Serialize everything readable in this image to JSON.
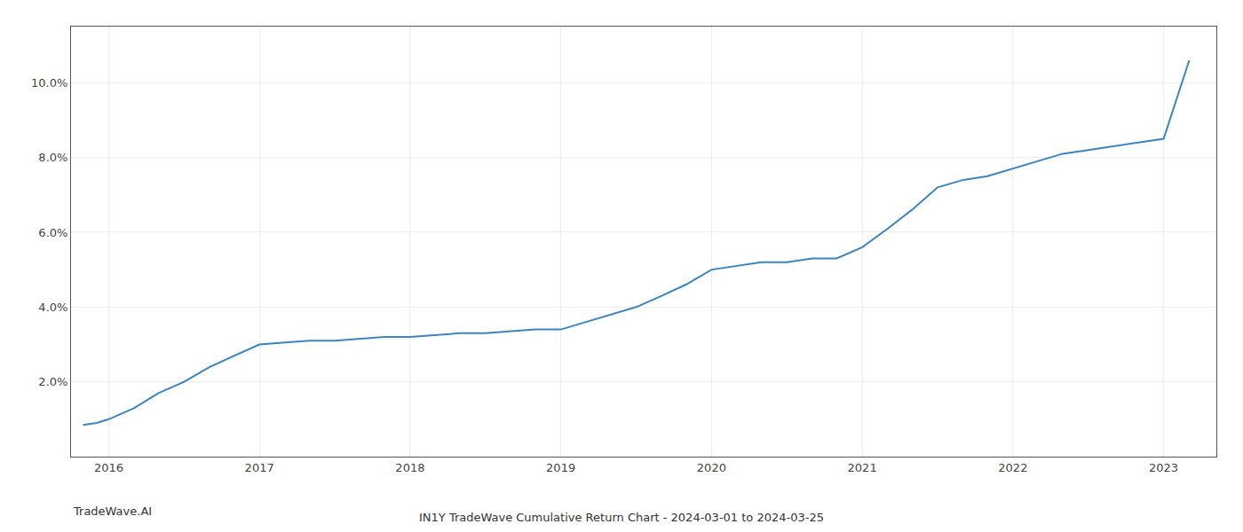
{
  "chart_data": {
    "type": "line",
    "title": "IN1Y TradeWave Cumulative Return Chart - 2024-03-01 to 2024-03-25",
    "annotations": [
      "TradeWave.AI"
    ],
    "x": [
      2015.83,
      2015.92,
      2016.0,
      2016.17,
      2016.33,
      2016.5,
      2016.67,
      2016.83,
      2017.0,
      2017.17,
      2017.33,
      2017.5,
      2017.67,
      2017.83,
      2018.0,
      2018.17,
      2018.33,
      2018.5,
      2018.67,
      2018.83,
      2019.0,
      2019.17,
      2019.33,
      2019.5,
      2019.67,
      2019.83,
      2020.0,
      2020.17,
      2020.33,
      2020.5,
      2020.67,
      2020.83,
      2021.0,
      2021.17,
      2021.33,
      2021.5,
      2021.67,
      2021.83,
      2022.0,
      2022.17,
      2022.33,
      2022.5,
      2022.67,
      2022.83,
      2023.0,
      2023.17
    ],
    "values": [
      0.0085,
      0.009,
      0.01,
      0.013,
      0.017,
      0.02,
      0.024,
      0.027,
      0.03,
      0.0305,
      0.031,
      0.031,
      0.0315,
      0.032,
      0.032,
      0.0325,
      0.033,
      0.033,
      0.0335,
      0.034,
      0.034,
      0.036,
      0.038,
      0.04,
      0.043,
      0.046,
      0.05,
      0.051,
      0.052,
      0.052,
      0.053,
      0.053,
      0.056,
      0.061,
      0.066,
      0.072,
      0.074,
      0.075,
      0.077,
      0.079,
      0.081,
      0.082,
      0.083,
      0.084,
      0.085,
      0.106
    ],
    "color": "#3a85c2",
    "xlim": [
      2015.75,
      2023.35
    ],
    "xticks": [
      2016,
      2017,
      2018,
      2019,
      2020,
      2021,
      2022,
      2023
    ],
    "ylim": [
      0.0,
      0.115
    ],
    "yticks": [
      {
        "value": 0.02,
        "label": "2.0%"
      },
      {
        "value": 0.04,
        "label": "4.0%"
      },
      {
        "value": 0.06,
        "label": "6.0%"
      },
      {
        "value": 0.08,
        "label": "8.0%"
      },
      {
        "value": 0.1,
        "label": "10.0%"
      }
    ],
    "grid": true
  }
}
